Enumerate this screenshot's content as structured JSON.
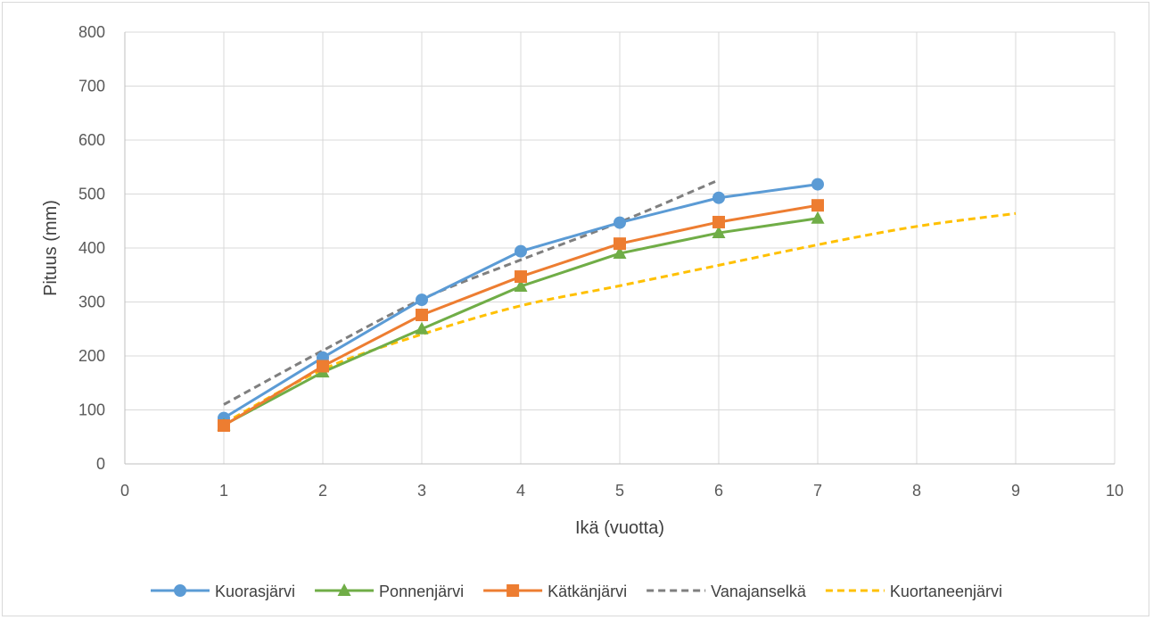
{
  "chart_data": {
    "type": "line",
    "title": "",
    "xlabel": "Ikä (vuotta)",
    "ylabel": "Pituus (mm)",
    "xlim": [
      0,
      10
    ],
    "ylim": [
      0,
      800
    ],
    "x_ticks": [
      "0",
      "1",
      "2",
      "3",
      "4",
      "5",
      "6",
      "7",
      "8",
      "9",
      "10"
    ],
    "y_ticks": [
      "0",
      "100",
      "200",
      "300",
      "400",
      "500",
      "600",
      "700",
      "800"
    ],
    "grid": true,
    "legend_position": "bottom",
    "series": [
      {
        "name": "Kuorasjärvi",
        "color": "#5b9bd5",
        "style": "solid",
        "marker": "circle",
        "x": [
          1,
          2,
          3,
          4,
          5,
          6,
          7
        ],
        "values": [
          85,
          197,
          304,
          394,
          447,
          493,
          518
        ]
      },
      {
        "name": "Ponnenjärvi",
        "color": "#70ad47",
        "style": "solid",
        "marker": "triangle",
        "x": [
          1,
          2,
          3,
          4,
          5,
          6,
          7
        ],
        "values": [
          72,
          170,
          250,
          329,
          390,
          428,
          455
        ]
      },
      {
        "name": "Kätkänjärvi",
        "color": "#ed7d31",
        "style": "solid",
        "marker": "square",
        "x": [
          1,
          2,
          3,
          4,
          5,
          6,
          7
        ],
        "values": [
          71,
          181,
          276,
          347,
          408,
          448,
          479
        ]
      },
      {
        "name": "Vanajanselkä",
        "color": "#7f7f7f",
        "style": "dashed",
        "marker": "none",
        "x": [
          1,
          2,
          3,
          4,
          5,
          6
        ],
        "values": [
          110,
          210,
          305,
          378,
          448,
          526
        ]
      },
      {
        "name": "Kuortaneenjärvi",
        "color": "#ffc000",
        "style": "dashed",
        "marker": "none",
        "x": [
          1,
          2,
          3,
          4,
          5,
          6,
          7,
          8,
          9
        ],
        "values": [
          75,
          175,
          240,
          293,
          330,
          368,
          406,
          440,
          464
        ]
      }
    ]
  }
}
